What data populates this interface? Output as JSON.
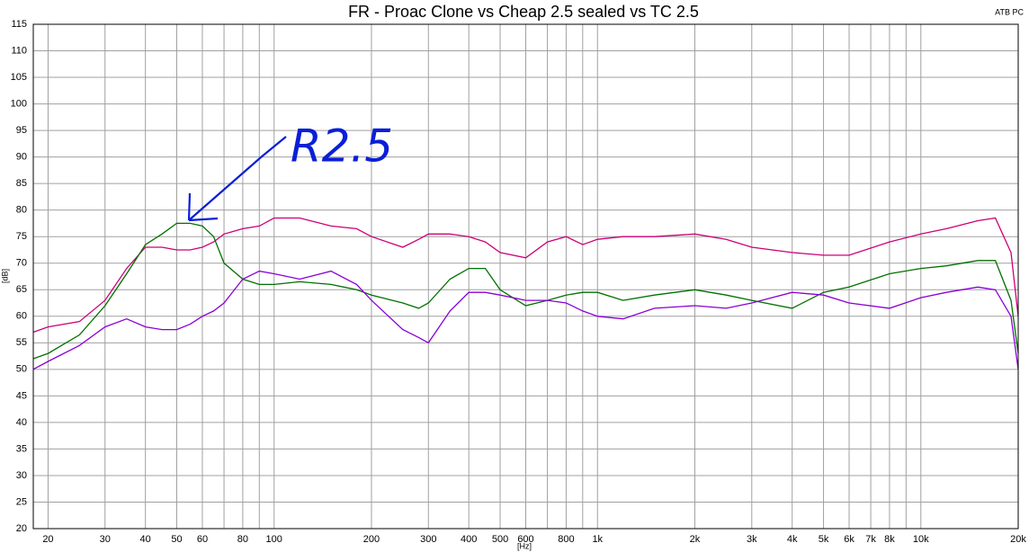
{
  "chart_data": {
    "type": "line",
    "title": "FR - Proac Clone vs Cheap 2.5 sealed vs TC 2.5",
    "corner_label": "ATB PC",
    "x_label": "[Hz]",
    "y_label": "[dB]",
    "annotation": "R2.5",
    "xscale": "log",
    "grid": true,
    "xlim": [
      18,
      20000
    ],
    "ylim": [
      20,
      115
    ],
    "yticks": [
      20,
      25,
      30,
      35,
      40,
      45,
      50,
      55,
      60,
      65,
      70,
      75,
      80,
      85,
      90,
      95,
      100,
      105,
      110,
      115
    ],
    "xticks": [
      20,
      30,
      40,
      50,
      60,
      80,
      100,
      200,
      300,
      400,
      500,
      600,
      800,
      {
        "value": 1000,
        "label": "1k"
      },
      {
        "value": 2000,
        "label": "2k"
      },
      {
        "value": 3000,
        "label": "3k"
      },
      {
        "value": 4000,
        "label": "4k"
      },
      {
        "value": 5000,
        "label": "5k"
      },
      {
        "value": 6000,
        "label": "6k"
      },
      {
        "value": 7000,
        "label": "7k"
      },
      {
        "value": 8000,
        "label": "8k"
      },
      {
        "value": 10000,
        "label": "10k"
      },
      {
        "value": 20000,
        "label": "20k"
      }
    ],
    "xminorticks": [
      70,
      90,
      700,
      900,
      9000
    ],
    "x": [
      18,
      20,
      25,
      30,
      35,
      40,
      45,
      50,
      55,
      60,
      65,
      70,
      80,
      90,
      100,
      120,
      150,
      180,
      200,
      250,
      280,
      300,
      350,
      400,
      450,
      500,
      600,
      700,
      800,
      900,
      1000,
      1200,
      1500,
      2000,
      2500,
      3000,
      4000,
      5000,
      6000,
      8000,
      10000,
      12000,
      15000,
      17000,
      19000,
      20000
    ],
    "series": [
      {
        "color": "#cc0077",
        "values": [
          57,
          58,
          59,
          63,
          69,
          73,
          73,
          72.5,
          72.5,
          73,
          74,
          75.5,
          76.5,
          77,
          78.5,
          78.5,
          77,
          76.5,
          75,
          73,
          74.5,
          75.5,
          75.5,
          75,
          74,
          72,
          71,
          74,
          75,
          73.5,
          74.5,
          75,
          75,
          75.5,
          74.5,
          73,
          72,
          71.5,
          71.5,
          74,
          75.5,
          76.5,
          78,
          78.5,
          72,
          60
        ]
      },
      {
        "color": "#007000",
        "values": [
          52,
          53,
          56.5,
          62,
          68,
          73.5,
          75.5,
          77.5,
          77.5,
          77,
          75,
          70,
          67,
          66,
          66,
          66.5,
          66,
          65,
          64,
          62.5,
          61.5,
          62.5,
          67,
          69,
          69,
          65,
          62,
          63,
          64,
          64.5,
          64.5,
          63,
          64,
          65,
          64,
          63,
          61.5,
          64.5,
          65.5,
          68,
          69,
          69.5,
          70.5,
          70.5,
          63,
          53
        ]
      },
      {
        "color": "#8a00d4",
        "values": [
          50,
          51.5,
          54.5,
          58,
          59.5,
          58,
          57.5,
          57.5,
          58.5,
          60,
          61,
          62.5,
          67,
          68.5,
          68,
          67,
          68.5,
          66,
          63,
          57.5,
          56,
          55,
          61,
          64.5,
          64.5,
          64,
          63,
          63,
          62.5,
          61,
          60,
          59.5,
          61.5,
          62,
          61.5,
          62.5,
          64.5,
          64,
          62.5,
          61.5,
          63.5,
          64.5,
          65.5,
          65,
          60,
          50
        ]
      }
    ]
  }
}
